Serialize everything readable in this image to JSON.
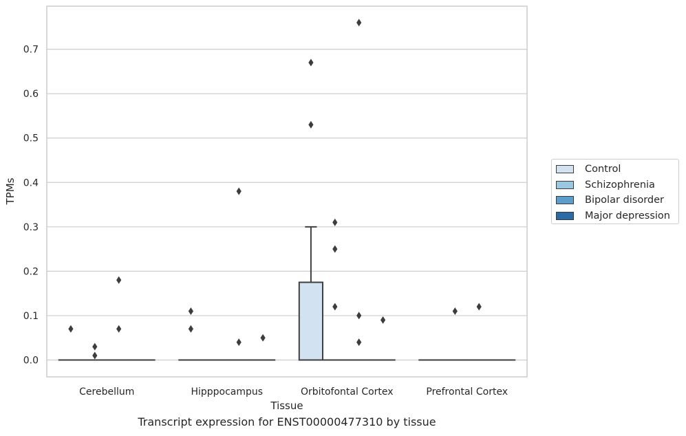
{
  "chart_data": {
    "type": "box",
    "caption": "Transcript expression for ENST00000477310 by tissue",
    "xlabel": "Tissue",
    "ylabel": "TPMs",
    "categories": [
      "Cerebellum",
      "Hipppocampus",
      "Orbitofontal Cortex",
      "Prefrontal Cortex"
    ],
    "ylim": [
      -0.038,
      0.797
    ],
    "yticks": [
      0.0,
      0.1,
      0.2,
      0.3,
      0.4,
      0.5,
      0.6,
      0.7
    ],
    "ytick_labels": [
      "0.0",
      "0.1",
      "0.2",
      "0.3",
      "0.4",
      "0.5",
      "0.6",
      "0.7"
    ],
    "grid": "horizontal",
    "legend_position": "right",
    "series": [
      {
        "name": "Control",
        "color": "#d2e2f0",
        "boxes": [
          {
            "category": "Cerebellum",
            "q1": 0,
            "median": 0,
            "q3": 0,
            "whisker_low": 0,
            "whisker_high": 0,
            "outliers": [
              0.07
            ]
          },
          {
            "category": "Hipppocampus",
            "q1": 0,
            "median": 0,
            "q3": 0,
            "whisker_low": 0,
            "whisker_high": 0,
            "outliers": [
              0.11,
              0.07
            ]
          },
          {
            "category": "Orbitofontal Cortex",
            "q1": 0,
            "median": 0,
            "q3": 0.175,
            "whisker_low": 0,
            "whisker_high": 0.3,
            "outliers": [
              0.67,
              0.53
            ]
          },
          {
            "category": "Prefrontal Cortex",
            "q1": 0,
            "median": 0,
            "q3": 0,
            "whisker_low": 0,
            "whisker_high": 0,
            "outliers": []
          }
        ]
      },
      {
        "name": "Schizophrenia",
        "color": "#9ac8e0",
        "boxes": [
          {
            "category": "Cerebellum",
            "q1": 0,
            "median": 0,
            "q3": 0,
            "whisker_low": 0,
            "whisker_high": 0,
            "outliers": [
              0.03,
              0.01
            ]
          },
          {
            "category": "Hipppocampus",
            "q1": 0,
            "median": 0,
            "q3": 0,
            "whisker_low": 0,
            "whisker_high": 0,
            "outliers": []
          },
          {
            "category": "Orbitofontal Cortex",
            "q1": 0,
            "median": 0,
            "q3": 0,
            "whisker_low": 0,
            "whisker_high": 0,
            "outliers": [
              0.31,
              0.25,
              0.12
            ]
          },
          {
            "category": "Prefrontal Cortex",
            "q1": 0,
            "median": 0,
            "q3": 0,
            "whisker_low": 0,
            "whisker_high": 0,
            "outliers": [
              0.11
            ]
          }
        ]
      },
      {
        "name": "Bipolar disorder",
        "color": "#5b9dcb",
        "boxes": [
          {
            "category": "Cerebellum",
            "q1": 0,
            "median": 0,
            "q3": 0,
            "whisker_low": 0,
            "whisker_high": 0,
            "outliers": [
              0.18,
              0.07
            ]
          },
          {
            "category": "Hipppocampus",
            "q1": 0,
            "median": 0,
            "q3": 0,
            "whisker_low": 0,
            "whisker_high": 0,
            "outliers": [
              0.38,
              0.04
            ]
          },
          {
            "category": "Orbitofontal Cortex",
            "q1": 0,
            "median": 0,
            "q3": 0,
            "whisker_low": 0,
            "whisker_high": 0,
            "outliers": [
              0.76,
              0.1,
              0.04
            ]
          },
          {
            "category": "Prefrontal Cortex",
            "q1": 0,
            "median": 0,
            "q3": 0,
            "whisker_low": 0,
            "whisker_high": 0,
            "outliers": [
              0.12
            ]
          }
        ]
      },
      {
        "name": "Major depression",
        "color": "#2a6aa7",
        "boxes": [
          {
            "category": "Cerebellum",
            "q1": 0,
            "median": 0,
            "q3": 0,
            "whisker_low": 0,
            "whisker_high": 0,
            "outliers": []
          },
          {
            "category": "Hipppocampus",
            "q1": 0,
            "median": 0,
            "q3": 0,
            "whisker_low": 0,
            "whisker_high": 0,
            "outliers": [
              0.05
            ]
          },
          {
            "category": "Orbitofontal Cortex",
            "q1": 0,
            "median": 0,
            "q3": 0,
            "whisker_low": 0,
            "whisker_high": 0,
            "outliers": [
              0.09
            ]
          },
          {
            "category": "Prefrontal Cortex",
            "q1": 0,
            "median": 0,
            "q3": 0,
            "whisker_low": 0,
            "whisker_high": 0,
            "outliers": []
          }
        ]
      }
    ]
  }
}
